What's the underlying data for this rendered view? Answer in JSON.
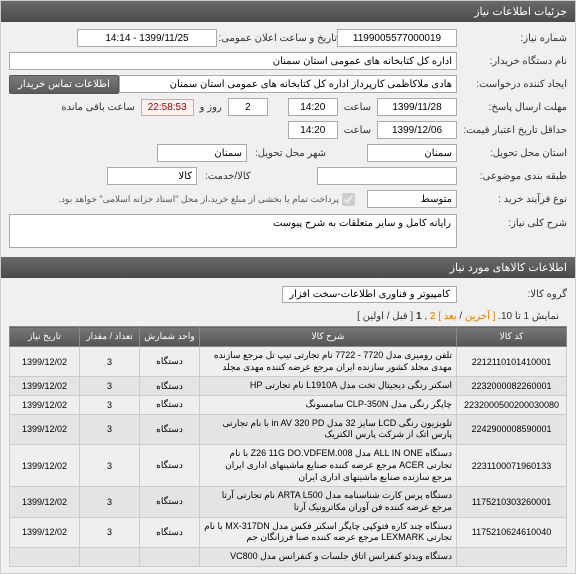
{
  "header": {
    "title": "جزئیات اطلاعات نیاز"
  },
  "form": {
    "need_no_label": "شماره نیاز:",
    "need_no": "1199005577000019",
    "announce_label": "تاریخ و ساعت اعلان عمومی:",
    "announce": "1399/11/25 - 14:14",
    "buyer_label": "نام دستگاه خریدار:",
    "buyer": "اداره کل کتابخانه های عمومی استان سمنان",
    "creator_label": "ایجاد کننده درخواست:",
    "creator": "هادی ملاکاظمی کارپرداز اداره کل کتابخانه های عمومی استان سمنان",
    "contact_btn": "اطلاعات تماس خریدار",
    "deadline_resp_label": "مهلت ارسال پاسخ:",
    "from_label1": "تا تاریخ:",
    "date1": "1399/11/28",
    "time_label": "ساعت",
    "time1": "14:20",
    "days1": "2",
    "days_label": "روز و",
    "countdown": "22:58:53",
    "remain_label": "ساعت باقی مانده",
    "validity_label": "حداقل تاریخ اعتبار قیمت:",
    "from_label2": "تا تاریخ:",
    "date2": "1399/12/06",
    "time2": "14:20",
    "deliver_prov_label": "استان محل تحویل:",
    "deliver_prov": "سمنان",
    "deliver_city_label": "شهر محل تحویل:",
    "deliver_city": "سمنان",
    "budget_row_label": "طبقه بندی موضوعی:",
    "goods_label": "کالا/خدمت:",
    "goods_val": "کالا",
    "process_label": "نوع فرآیند خرید :",
    "process_val": "متوسط",
    "payment_note": "پرداخت تمام یا بخشی از مبلغ خرید،از محل \"اسناد خزانه اسلامی\" خواهد بود.",
    "desc_label": "شرح کلی نیاز:",
    "desc": "رایانه کامل و سایر متعلقات به شرح پیوست"
  },
  "section2": {
    "title": "اطلاعات کالاهای مورد نیاز",
    "group_label": "گروه کالا:",
    "group_val": "کامپیوتر و فناوری اطلاعات-سخت افزار"
  },
  "pager": {
    "showing": "نمایش 1 تا 10.",
    "prev": "[ آخرین",
    "next": "بعد ]",
    "p1": "1",
    "p2": "2",
    "first": "[ قبل / اولین ]",
    "sep": " , "
  },
  "table": {
    "cols": [
      "کد کالا",
      "شرح کالا",
      "واحد شمارش",
      "تعداد / مقدار",
      "تاریخ نیاز"
    ],
    "rows": [
      {
        "code": "2212110101410001",
        "desc": "تلفن رومیزی مدل 7720 - 7722 نام تجارتی تیپ تل مرجع سازنده مهدی مجلد کشور سازنده ایران مرجع عرضه کننده مهدی مجلد",
        "unit": "دستگاه",
        "qty": "3",
        "date": "1399/12/02"
      },
      {
        "code": "2232000082260001",
        "desc": "اسکنر رنگی دیجیتال تخت مدل L1910A نام تجارتی HP",
        "unit": "دستگاه",
        "qty": "3",
        "date": "1399/12/02"
      },
      {
        "code": "2232000500200030080",
        "desc": "چاپگر رنگی مدل CLP-350N سامسونگ",
        "unit": "دستگاه",
        "qty": "3",
        "date": "1399/12/02"
      },
      {
        "code": "2242900008590001",
        "desc": "تلویزیون رنگی LCD سایز 32 مدل in AV 320 PD با نام تجارتی پارس اتک از شرکت پارس الکتریک",
        "unit": "دستگاه",
        "qty": "3",
        "date": "1399/12/02"
      },
      {
        "code": "2231100071960133",
        "desc": "دستگاه ALL IN ONE مدل DO.VDFEM.008‏ Z26 11G با نام تجارتی ACER مرجع عرضه کننده صنایع ماشینهای اداری ایران مرجع سازنده صنایع ماشینهای اداری ایران",
        "unit": "دستگاه",
        "qty": "3",
        "date": "1399/12/02"
      },
      {
        "code": "1175210303260001",
        "desc": "دستگاه پرس کارت شناسنامه مدل ARTA L500 نام تجارتی آرتا مرجع عرضه کننده فن آوران مکاترونیک آرتا",
        "unit": "دستگاه",
        "qty": "3",
        "date": "1399/12/02"
      },
      {
        "code": "1175210624610040",
        "desc": "دستگاه چند کاره فتوکپی چاپگر اسکنر فکس مدل MX-317DN با نام تجارتی LEXMARK مرجع عرضه کننده صبا فرزانگان جم",
        "unit": "دستگاه",
        "qty": "3",
        "date": "1399/12/02"
      },
      {
        "code": "",
        "desc": "دستگاه ویدئو کنفرانس اتاق جلسات و کنفرانس مدل VC800",
        "unit": "",
        "qty": "",
        "date": ""
      }
    ]
  }
}
